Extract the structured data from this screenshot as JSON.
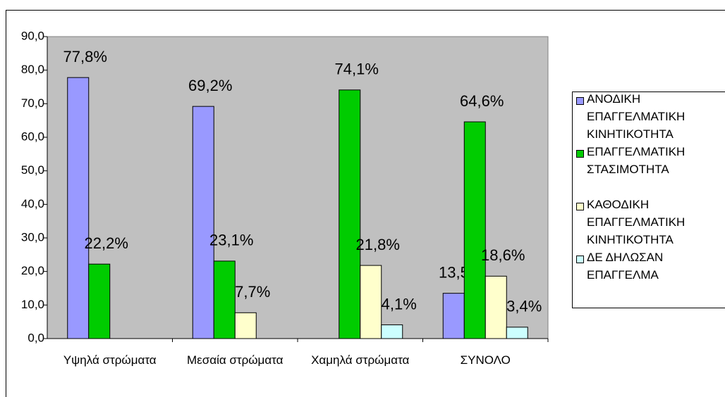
{
  "chart_data": {
    "type": "bar",
    "categories": [
      "Υψηλά στρώματα",
      "Μεσαία στρώματα",
      "Χαμηλά στρώματα",
      "ΣΥΝΟΛΟ"
    ],
    "series": [
      {
        "name": "ΑΝΟΔΙΚΗ ΕΠΑΓΓΕΛΜΑΤΙΚΗ ΚΙΝΗΤΙΚΟΤΗΤΑ",
        "color": "#9999ff",
        "values": [
          77.8,
          69.2,
          null,
          13.5
        ],
        "value_labels": [
          "77,8%",
          "69,2%",
          null,
          "13,5%"
        ]
      },
      {
        "name": "ΕΠΑΓΓΕΛΜΑΤΙΚΗ ΣΤΑΣΙΜΟΤΗΤΑ",
        "color": "#00cc00",
        "values": [
          22.2,
          23.1,
          74.1,
          64.6
        ],
        "value_labels": [
          "22,2%",
          "23,1%",
          "74,1%",
          "64,6%"
        ]
      },
      {
        "name": "ΚΑΘΟΔΙΚΗ ΕΠΑΓΓΕΛΜΑΤΙΚΗ ΚΙΝΗΤΙΚΟΤΗΤΑ",
        "color": "#ffffcc",
        "values": [
          null,
          7.7,
          21.8,
          18.6
        ],
        "value_labels": [
          null,
          "7,7%",
          "21,8%",
          "18,6%"
        ]
      },
      {
        "name": "ΔΕ ΔΗΛΩΣΑΝ ΕΠΑΓΓΕΛΜΑ",
        "color": "#ccffff",
        "values": [
          null,
          null,
          4.1,
          3.4
        ],
        "value_labels": [
          null,
          null,
          "4,1%",
          "3,4%"
        ]
      }
    ],
    "ylim": [
      0,
      90
    ],
    "yticks": [
      {
        "value": 0,
        "label": "0,0"
      },
      {
        "value": 10,
        "label": "10,0"
      },
      {
        "value": 20,
        "label": "20,0"
      },
      {
        "value": 30,
        "label": "30,0"
      },
      {
        "value": 40,
        "label": "40,0"
      },
      {
        "value": 50,
        "label": "50,0"
      },
      {
        "value": 60,
        "label": "60,0"
      },
      {
        "value": 70,
        "label": "70,0"
      },
      {
        "value": 80,
        "label": "80,0"
      },
      {
        "value": 90,
        "label": "90,0"
      }
    ],
    "plot_background": "#c0c0c0",
    "legend": "right"
  }
}
